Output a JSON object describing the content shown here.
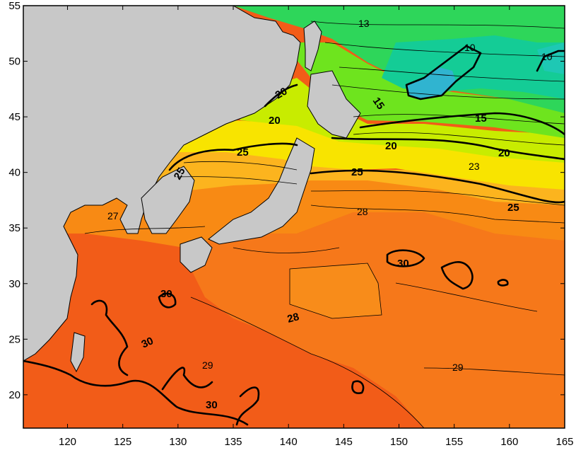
{
  "map": {
    "lon_range": [
      116,
      165
    ],
    "lat_range": [
      17,
      55
    ],
    "x_ticks": [
      "120",
      "125",
      "130",
      "135",
      "140",
      "145",
      "150",
      "155",
      "160",
      "165"
    ],
    "y_ticks": [
      "55",
      "50",
      "45",
      "40",
      "35",
      "30",
      "25",
      "20"
    ],
    "colors": {
      "land": "#c8c8c8",
      "warm_30": "#f45a14",
      "sst_28": "#f88a14",
      "sst_25": "#fcc01e",
      "sst_23": "#f8f000",
      "sst_20": "#c8f000",
      "sst_15": "#50e030",
      "sst_13": "#2ad860",
      "sst_10": "#14d2a0",
      "cold": "#22b4d2"
    },
    "contour_labels": [
      "13",
      "10",
      "10",
      "15",
      "15",
      "20",
      "20",
      "20",
      "20",
      "23",
      "25",
      "25",
      "25",
      "25",
      "27",
      "28",
      "28",
      "30",
      "30",
      "30",
      "30",
      "29",
      "29"
    ]
  }
}
